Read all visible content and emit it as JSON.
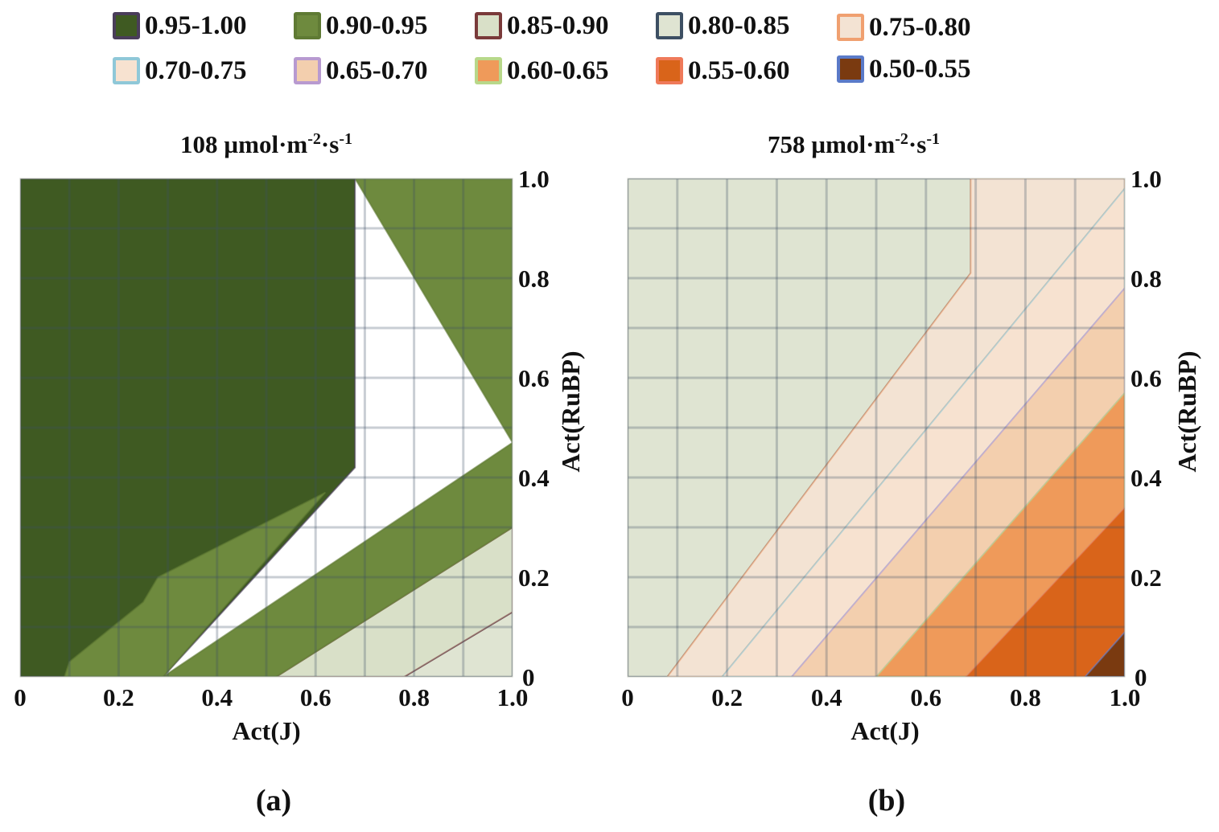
{
  "legend": {
    "items": [
      {
        "label": "0.95-1.00",
        "fill": "#3f5a22",
        "border": "#4a3d5a"
      },
      {
        "label": "0.90-0.95",
        "fill": "#6e8a3e",
        "border": "#5f7a34"
      },
      {
        "label": "0.85-0.90",
        "fill": "#d9e0c8",
        "border": "#7a3a3a"
      },
      {
        "label": "0.80-0.85",
        "fill": "#dfe4d2",
        "border": "#3d4f63"
      },
      {
        "label": "0.75-0.80",
        "fill": "#f3e3d3",
        "border": "#f0a070"
      },
      {
        "label": "0.70-0.75",
        "fill": "#f7e2d0",
        "border": "#8fc8d8"
      },
      {
        "label": "0.65-0.70",
        "fill": "#f3cfae",
        "border": "#b89ad0"
      },
      {
        "label": "0.60-0.65",
        "fill": "#ef9a5a",
        "border": "#b8d88a"
      },
      {
        "label": "0.55-0.60",
        "fill": "#d9641a",
        "border": "#ef7a5a"
      },
      {
        "label": "0.50-0.55",
        "fill": "#7a3a10",
        "border": "#5a7ac8"
      }
    ]
  },
  "chart_data": [
    {
      "type": "heatmap",
      "title_value": "108",
      "title_unit": "µmol·m",
      "title_exp1": "-2",
      "title_mid": "·s",
      "title_exp2": "-1",
      "xlabel": "Act(J)",
      "ylabel": "Act(RuBP)",
      "xlim": [
        0,
        1.0
      ],
      "ylim": [
        0,
        1.0
      ],
      "x_ticks": [
        "0",
        "0.2",
        "0.4",
        "0.6",
        "0.8",
        "1.0"
      ],
      "y_ticks": [
        "0",
        "0.2",
        "0.4",
        "0.6",
        "0.8",
        "1.0"
      ],
      "panel_label": "(a)",
      "regions": [
        {
          "range": "0.80-0.85",
          "poly": [
            [
              0.78,
              0
            ],
            [
              1.0,
              0
            ],
            [
              1.0,
              0.13
            ]
          ]
        },
        {
          "range": "0.85-0.90",
          "poly": [
            [
              0.52,
              0
            ],
            [
              0.78,
              0
            ],
            [
              1.0,
              0.13
            ],
            [
              1.0,
              0.3
            ]
          ]
        },
        {
          "range": "0.90-0.95",
          "poly": [
            [
              0.29,
              0
            ],
            [
              0.52,
              0
            ],
            [
              1.0,
              0.3
            ],
            [
              1.0,
              0.47
            ]
          ]
        },
        {
          "range": "0.90-0.95",
          "poly": [
            [
              0.68,
              1.0
            ],
            [
              1.0,
              1.0
            ],
            [
              1.0,
              0.47
            ]
          ]
        },
        {
          "range": "0.95-1.00",
          "poly": [
            [
              0,
              0
            ],
            [
              0.29,
              0
            ],
            [
              0.68,
              0.42
            ],
            [
              0.68,
              1.0
            ],
            [
              0,
              1.0
            ]
          ]
        }
      ],
      "regions_detail": [
        {
          "range": "0.90-0.95",
          "poly": [
            [
              0.09,
              0
            ],
            [
              0.29,
              0
            ],
            [
              0.62,
              0.37
            ],
            [
              0.28,
              0.2
            ],
            [
              0.25,
              0.15
            ],
            [
              0.1,
              0.03
            ]
          ]
        }
      ]
    },
    {
      "type": "heatmap",
      "title_value": "758",
      "title_unit": "µmol·m",
      "title_exp1": "-2",
      "title_mid": "·s",
      "title_exp2": "-1",
      "xlabel": "Act(J)",
      "ylabel": "Act(RuBP)",
      "xlim": [
        0,
        1.0
      ],
      "ylim": [
        0,
        1.0
      ],
      "x_ticks": [
        "0",
        "0.2",
        "0.4",
        "0.6",
        "0.8",
        "1.0"
      ],
      "y_ticks": [
        "0",
        "0.2",
        "0.4",
        "0.6",
        "0.8",
        "1.0"
      ],
      "panel_label": "(b)",
      "regions": [
        {
          "range": "0.80-0.85",
          "poly": [
            [
              0,
              0
            ],
            [
              0.08,
              0
            ],
            [
              0.69,
              0.81
            ],
            [
              0.69,
              1.0
            ],
            [
              0,
              1.0
            ]
          ]
        },
        {
          "range": "0.75-0.80",
          "poly": [
            [
              0.08,
              0
            ],
            [
              0.19,
              0
            ],
            [
              1.0,
              0.98
            ],
            [
              1.0,
              1.0
            ],
            [
              0.69,
              1.0
            ],
            [
              0.69,
              0.81
            ]
          ]
        },
        {
          "range": "0.70-0.75",
          "poly": [
            [
              0.19,
              0
            ],
            [
              0.33,
              0
            ],
            [
              1.0,
              0.78
            ],
            [
              1.0,
              0.98
            ]
          ]
        },
        {
          "range": "0.65-0.70",
          "poly": [
            [
              0.33,
              0
            ],
            [
              0.5,
              0
            ],
            [
              1.0,
              0.57
            ],
            [
              1.0,
              0.78
            ]
          ]
        },
        {
          "range": "0.60-0.65",
          "poly": [
            [
              0.5,
              0
            ],
            [
              0.68,
              0
            ],
            [
              1.0,
              0.34
            ],
            [
              1.0,
              0.57
            ]
          ]
        },
        {
          "range": "0.55-0.60",
          "poly": [
            [
              0.68,
              0
            ],
            [
              0.92,
              0
            ],
            [
              1.0,
              0.09
            ],
            [
              1.0,
              0.34
            ]
          ]
        },
        {
          "range": "0.50-0.55",
          "poly": [
            [
              0.92,
              0
            ],
            [
              1.0,
              0
            ],
            [
              1.0,
              0.09
            ]
          ]
        }
      ],
      "regions_detail": []
    }
  ]
}
